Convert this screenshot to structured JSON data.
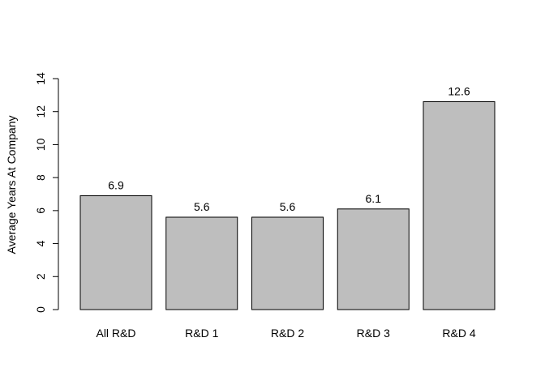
{
  "chart_data": {
    "type": "bar",
    "title": "",
    "xlabel": "",
    "ylabel": "Average Years At Company",
    "categories": [
      "All R&D",
      "R&D 1",
      "R&D 2",
      "R&D 3",
      "R&D 4"
    ],
    "values": [
      6.9,
      5.6,
      5.6,
      6.1,
      12.6
    ],
    "data_labels": [
      "6.9",
      "5.6",
      "5.6",
      "6.1",
      "12.6"
    ],
    "ylim": [
      0,
      14
    ],
    "yticks": [
      "0",
      "2",
      "4",
      "6",
      "8",
      "10",
      "12",
      "14"
    ],
    "grid": false,
    "legend": "none",
    "colors": {
      "bar_fill": "#bebebe",
      "bar_stroke": "#000000",
      "text": "#000000"
    }
  }
}
